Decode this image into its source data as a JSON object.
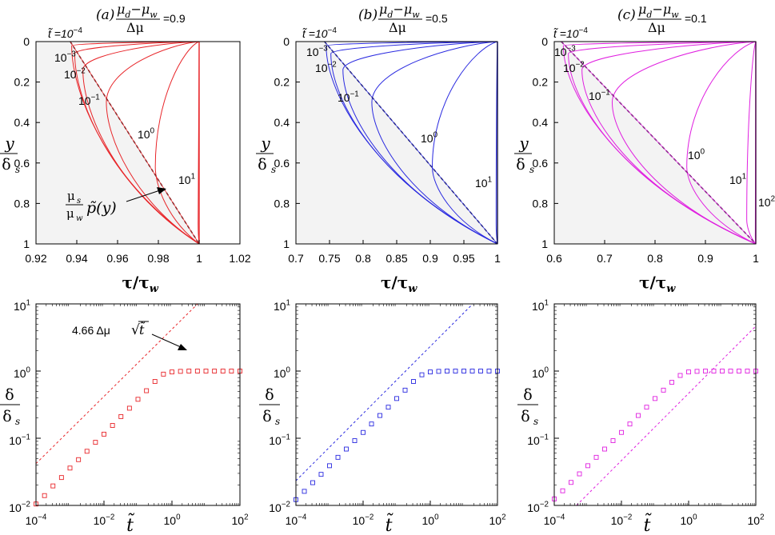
{
  "figure": {
    "panel_titles": [
      {
        "tag": "(a)",
        "ratio": "0.9",
        "num_a": "μ",
        "sub_a": "d",
        "minus": "−",
        "num_b": "μ",
        "sub_b": "w",
        "den": "Δμ",
        "eq": "=0.9"
      },
      {
        "tag": "(b)",
        "ratio": "0.5",
        "num_a": "μ",
        "sub_a": "d",
        "minus": "−",
        "num_b": "μ",
        "sub_b": "w",
        "den": "Δμ",
        "eq": "=0.5"
      },
      {
        "tag": "(c)",
        "ratio": "0.1",
        "num_a": "μ",
        "sub_a": "d",
        "minus": "−",
        "num_b": "μ",
        "sub_b": "w",
        "den": "Δμ",
        "eq": "=0.1"
      }
    ],
    "t_label_prefix": "t̃ =10",
    "t_label_exp": "−4",
    "curve_labels_exp": [
      "−3",
      "−2",
      "−1",
      "0",
      "1",
      "2"
    ],
    "curve_label_base": "10",
    "ylabel_top": {
      "num": "y",
      "den": "δ",
      "den_sub": "s"
    },
    "xlabel_top": {
      "a": "τ/τ",
      "sub": "w"
    },
    "ylabel_bottom": {
      "num": "δ",
      "den": "δ",
      "den_sub": "s"
    },
    "xlabel_bottom": "t̃",
    "annotation_top": {
      "frac_num": "μ",
      "frac_num_sub": "s",
      "frac_den": "μ",
      "frac_den_sub": "w",
      "fn": "p̃(y)"
    },
    "annotation_bottom": {
      "coef": "4.66 Δμ",
      "sqrt": "√",
      "arg": "t̃"
    },
    "colors": {
      "a": "#e8262a",
      "b": "#2a2ae0",
      "c": "#e020e0",
      "shade": "#f3f3f3",
      "axis": "#000000",
      "dash": "#000000"
    }
  },
  "chart_data": [
    {
      "type": "line",
      "panel": "a-top",
      "xlabel": "τ/τw",
      "ylabel": "y/δs",
      "xlim": [
        0.92,
        1.02
      ],
      "ylim": [
        1,
        0
      ],
      "xticks": [
        "0.92",
        "0.94",
        "0.96",
        "0.98",
        "1",
        "1.02"
      ],
      "yticks": [
        "0",
        "0.2",
        "0.4",
        "0.6",
        "0.8",
        "1"
      ],
      "series_times": [
        "10^-4",
        "10^-3",
        "10^-2",
        "10^-1",
        "10^0",
        "10^1"
      ],
      "series": [
        {
          "name": "t=10^-4",
          "turn_x": 0.9375,
          "turn_y": 0.02
        },
        {
          "name": "t=10^-3",
          "turn_x": 0.939,
          "turn_y": 0.06
        },
        {
          "name": "t=10^-2",
          "turn_x": 0.943,
          "turn_y": 0.14
        },
        {
          "name": "t=10^-1",
          "turn_x": 0.9545,
          "turn_y": 0.3
        },
        {
          "name": "t=10^0",
          "turn_x": 0.9785,
          "turn_y": 0.62
        },
        {
          "name": "t=10^1",
          "turn_x": 0.9995,
          "turn_y": 0.9
        }
      ],
      "dashed": {
        "name": "mu_s/mu_w p(y)",
        "x": [
          0.9368,
          1.0
        ],
        "y": [
          0,
          1
        ]
      }
    },
    {
      "type": "line",
      "panel": "b-top",
      "xlabel": "τ/τw",
      "ylabel": "y/δs",
      "xlim": [
        0.7,
        1.0
      ],
      "ylim": [
        1,
        0
      ],
      "xticks": [
        "0.7",
        "0.75",
        "0.8",
        "0.85",
        "0.9",
        "0.95",
        "1"
      ],
      "yticks": [
        "0",
        "0.2",
        "0.4",
        "0.6",
        "0.8",
        "1"
      ],
      "series": [
        {
          "name": "t=10^-4",
          "turn_x": 0.745,
          "turn_y": 0.02
        },
        {
          "name": "t=10^-3",
          "turn_x": 0.752,
          "turn_y": 0.06
        },
        {
          "name": "t=10^-2",
          "turn_x": 0.77,
          "turn_y": 0.14
        },
        {
          "name": "t=10^-1",
          "turn_x": 0.813,
          "turn_y": 0.3
        },
        {
          "name": "t=10^0",
          "turn_x": 0.903,
          "turn_y": 0.62
        },
        {
          "name": "t=10^1",
          "turn_x": 0.998,
          "turn_y": 0.9
        }
      ],
      "dashed": {
        "name": "mu_s/mu_w p(y)",
        "x": [
          0.7425,
          1.0
        ],
        "y": [
          0,
          1
        ]
      }
    },
    {
      "type": "line",
      "panel": "c-top",
      "xlabel": "τ/τw",
      "ylabel": "y/δs",
      "xlim": [
        0.6,
        1.0
      ],
      "ylim": [
        1,
        0
      ],
      "xticks": [
        "0.6",
        "0.7",
        "0.8",
        "0.9",
        "1"
      ],
      "yticks": [
        "0",
        "0.2",
        "0.4",
        "0.6",
        "0.8",
        "1"
      ],
      "series": [
        {
          "name": "t=10^-4",
          "turn_x": 0.618,
          "turn_y": 0.02
        },
        {
          "name": "t=10^-3",
          "turn_x": 0.628,
          "turn_y": 0.06
        },
        {
          "name": "t=10^-2",
          "turn_x": 0.655,
          "turn_y": 0.14
        },
        {
          "name": "t=10^-1",
          "turn_x": 0.715,
          "turn_y": 0.3
        },
        {
          "name": "t=10^0",
          "turn_x": 0.863,
          "turn_y": 0.62
        },
        {
          "name": "t=10^1",
          "turn_x": 0.982,
          "turn_y": 0.88
        },
        {
          "name": "t=10^2",
          "turn_x": 0.999,
          "turn_y": 0.96
        }
      ],
      "dashed": {
        "name": "mu_s/mu_w p(y)",
        "x": [
          0.614,
          1.0
        ],
        "y": [
          0,
          1
        ]
      }
    },
    {
      "type": "scatter",
      "panel": "a-bottom",
      "scale": "log-log",
      "xlabel": "t̃",
      "ylabel": "δ/δs",
      "xlim": [
        0.0001,
        100
      ],
      "ylim": [
        0.01,
        10
      ],
      "xticks": [
        "10^-4",
        "10^-2",
        "10^0",
        "10^2"
      ],
      "yticks": [
        "10^-2",
        "10^-1",
        "10^0",
        "10^1"
      ],
      "x": [
        0.0001,
        0.000178,
        0.000316,
        0.000562,
        0.001,
        0.00178,
        0.00316,
        0.00562,
        0.01,
        0.0178,
        0.0316,
        0.0562,
        0.1,
        0.178,
        0.316,
        0.562,
        1,
        1.78,
        3.16,
        5.62,
        10,
        17.8,
        31.6,
        56.2,
        100
      ],
      "y": [
        0.0105,
        0.014,
        0.0195,
        0.026,
        0.036,
        0.048,
        0.064,
        0.087,
        0.115,
        0.155,
        0.21,
        0.28,
        0.38,
        0.51,
        0.7,
        0.9,
        0.97,
        0.99,
        1.0,
        1.0,
        1.0,
        1.0,
        1.0,
        1.0,
        1.0
      ],
      "fit_line": {
        "label": "4.66 Δμ √t̃",
        "coefficient": 4.194
      }
    },
    {
      "type": "scatter",
      "panel": "b-bottom",
      "scale": "log-log",
      "xlabel": "t̃",
      "ylabel": "δ/δs",
      "xlim": [
        0.0001,
        100
      ],
      "ylim": [
        0.01,
        10
      ],
      "xticks": [
        "10^-4",
        "10^-2",
        "10^0",
        "10^2"
      ],
      "yticks": [
        "10^-2",
        "10^-1",
        "10^0",
        "10^1"
      ],
      "x": [
        0.0001,
        0.000178,
        0.000316,
        0.000562,
        0.001,
        0.00178,
        0.00316,
        0.00562,
        0.01,
        0.0178,
        0.0316,
        0.0562,
        0.1,
        0.178,
        0.316,
        0.562,
        1,
        1.78,
        3.16,
        5.62,
        10,
        17.8,
        31.6,
        56.2,
        100
      ],
      "y": [
        0.0122,
        0.0162,
        0.0218,
        0.029,
        0.039,
        0.052,
        0.069,
        0.092,
        0.122,
        0.163,
        0.218,
        0.29,
        0.39,
        0.52,
        0.7,
        0.88,
        0.97,
        0.99,
        1.0,
        1.0,
        1.0,
        1.0,
        1.0,
        1.0,
        1.0
      ],
      "fit_line": {
        "label": "4.66 Δμ √t̃",
        "coefficient": 2.33
      }
    },
    {
      "type": "scatter",
      "panel": "c-bottom",
      "scale": "log-log",
      "xlabel": "t̃",
      "ylabel": "δ/δs",
      "xlim": [
        0.0001,
        100
      ],
      "ylim": [
        0.01,
        10
      ],
      "xticks": [
        "10^-4",
        "10^-2",
        "10^0",
        "10^2"
      ],
      "yticks": [
        "10^-2",
        "10^-1",
        "10^0",
        "10^1"
      ],
      "x": [
        0.0001,
        0.000178,
        0.000316,
        0.000562,
        0.001,
        0.00178,
        0.00316,
        0.00562,
        0.01,
        0.0178,
        0.0316,
        0.0562,
        0.1,
        0.178,
        0.316,
        0.562,
        1,
        1.78,
        3.16,
        5.62,
        10,
        17.8,
        31.6,
        56.2,
        100
      ],
      "y": [
        0.0125,
        0.0165,
        0.022,
        0.0295,
        0.039,
        0.052,
        0.069,
        0.092,
        0.122,
        0.163,
        0.218,
        0.29,
        0.39,
        0.52,
        0.68,
        0.86,
        0.97,
        0.99,
        1.0,
        1.0,
        1.0,
        1.0,
        1.0,
        1.0,
        1.0
      ],
      "fit_line": {
        "label": "4.66 Δμ √t̃",
        "coefficient": 0.466
      }
    }
  ]
}
